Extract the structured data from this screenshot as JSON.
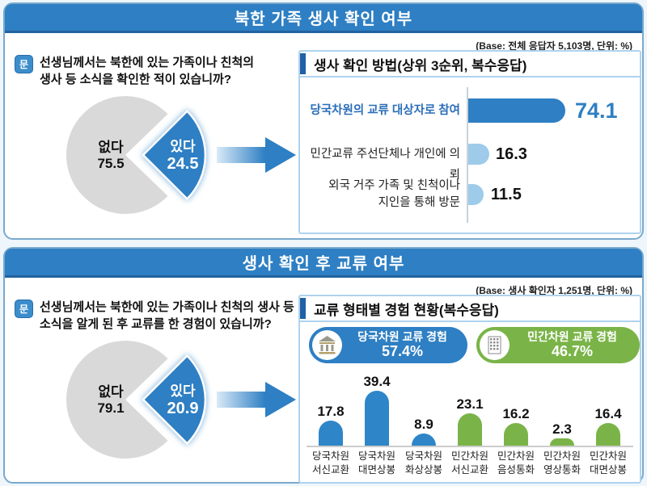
{
  "colors": {
    "header_blue": "#2e7fc3",
    "bar_blue": "#2e86c8",
    "light_blue_bar": "#9ecbea",
    "green": "#7ab448",
    "pie_gray": "#d9d9d9",
    "accent_navy": "#2160a4"
  },
  "panel1": {
    "header": "북한 가족 생사 확인 여부",
    "base_note": "(Base: 전체 응답자 5,103명, 단위: %)",
    "question_icon": "문",
    "question_line1": "선생님께서는 북한에 있는 가족이나 친척의",
    "question_line2": "생사 등 소식을 확인한 적이 있습니까?",
    "pie": {
      "no_label": "없다",
      "no_value": "75.5",
      "yes_label": "있다",
      "yes_value": "24.5"
    },
    "section": {
      "title": "생사 확인 방법(상위 3순위, 복수응답)",
      "bars": [
        {
          "label": "당국차원의 교류 대상자로 참여",
          "label2": "",
          "value": 74.1,
          "display": "74.1"
        },
        {
          "label": "민간교류 주선단체나 개인에 의뢰",
          "label2": "",
          "value": 16.3,
          "display": "16.3"
        },
        {
          "label": "외국 거주 가족 및 친척이나",
          "label2": "지인을 통해 방문",
          "value": 11.5,
          "display": "11.5"
        }
      ]
    }
  },
  "panel2": {
    "header": "생사 확인 후 교류 여부",
    "base_note": "(Base: 생사 확인자 1,251명, 단위: %)",
    "question_icon": "문",
    "question_line1": "선생님께서는 북한에 있는 가족이나 친척의 생사 등",
    "question_line2": "소식을 알게 된 후 교류를 한 경험이 있습니까?",
    "pie": {
      "no_label": "없다",
      "no_value": "79.1",
      "yes_label": "있다",
      "yes_value": "20.9"
    },
    "section": {
      "title": "교류 형태별 경험 현황(복수응답)",
      "badges": [
        {
          "label": "당국차원 교류 경험",
          "value": "57.4%"
        },
        {
          "label": "민간차원 교류 경험",
          "value": "46.7%"
        }
      ],
      "bars": [
        {
          "cat1": "당국차원",
          "cat2": "서신교환",
          "value": 17.8,
          "display": "17.8",
          "group": "gov"
        },
        {
          "cat1": "당국차원",
          "cat2": "대면상봉",
          "value": 39.4,
          "display": "39.4",
          "group": "gov"
        },
        {
          "cat1": "당국차원",
          "cat2": "화상상봉",
          "value": 8.9,
          "display": "8.9",
          "group": "gov"
        },
        {
          "cat1": "민간차원",
          "cat2": "서신교환",
          "value": 23.1,
          "display": "23.1",
          "group": "civ"
        },
        {
          "cat1": "민간차원",
          "cat2": "음성통화",
          "value": 16.2,
          "display": "16.2",
          "group": "civ"
        },
        {
          "cat1": "민간차원",
          "cat2": "영상통화",
          "value": 2.3,
          "display": "2.3",
          "group": "civ"
        },
        {
          "cat1": "민간차원",
          "cat2": "대면상봉",
          "value": 16.4,
          "display": "16.4",
          "group": "civ"
        }
      ]
    }
  },
  "chart_data": [
    {
      "type": "pie",
      "title": "북한 가족 생사 확인 여부",
      "labels": [
        "있다",
        "없다"
      ],
      "values": [
        24.5,
        75.5
      ],
      "unit": "%",
      "base": "전체 응답자 5,103명",
      "colors": [
        "#2e7fc3",
        "#d9d9d9"
      ],
      "layout": "있다 wedge exploded to the right"
    },
    {
      "type": "bar",
      "orientation": "horizontal",
      "title": "생사 확인 방법(상위 3순위, 복수응답)",
      "categories": [
        "당국차원의 교류 대상자로 참여",
        "민간교류 주선단체나 개인에 의뢰",
        "외국 거주 가족 및 친척이나 지인을 통해 방문"
      ],
      "values": [
        74.1,
        16.3,
        11.5
      ],
      "unit": "%",
      "highlight_index": 0
    },
    {
      "type": "pie",
      "title": "생사 확인 후 교류 여부",
      "labels": [
        "있다",
        "없다"
      ],
      "values": [
        20.9,
        79.1
      ],
      "unit": "%",
      "base": "생사 확인자 1,251명",
      "colors": [
        "#2e7fc3",
        "#d9d9d9"
      ],
      "layout": "있다 wedge exploded to the right"
    },
    {
      "type": "bar",
      "orientation": "vertical",
      "title": "교류 형태별 경험 현황(복수응답)",
      "categories": [
        "당국차원 서신교환",
        "당국차원 대면상봉",
        "당국차원 화상상봉",
        "민간차원 서신교환",
        "민간차원 음성통화",
        "민간차원 영상통화",
        "민간차원 대면상봉"
      ],
      "values": [
        17.8,
        39.4,
        8.9,
        23.1,
        16.2,
        2.3,
        16.4
      ],
      "unit": "%",
      "groups": [
        "당국차원",
        "당국차원",
        "당국차원",
        "민간차원",
        "민간차원",
        "민간차원",
        "민간차원"
      ],
      "group_totals": [
        {
          "name": "당국차원 교류 경험",
          "value": 57.4
        },
        {
          "name": "민간차원 교류 경험",
          "value": 46.7
        }
      ],
      "series_colors": {
        "당국차원": "#2e86c8",
        "민간차원": "#7ab448"
      }
    }
  ]
}
